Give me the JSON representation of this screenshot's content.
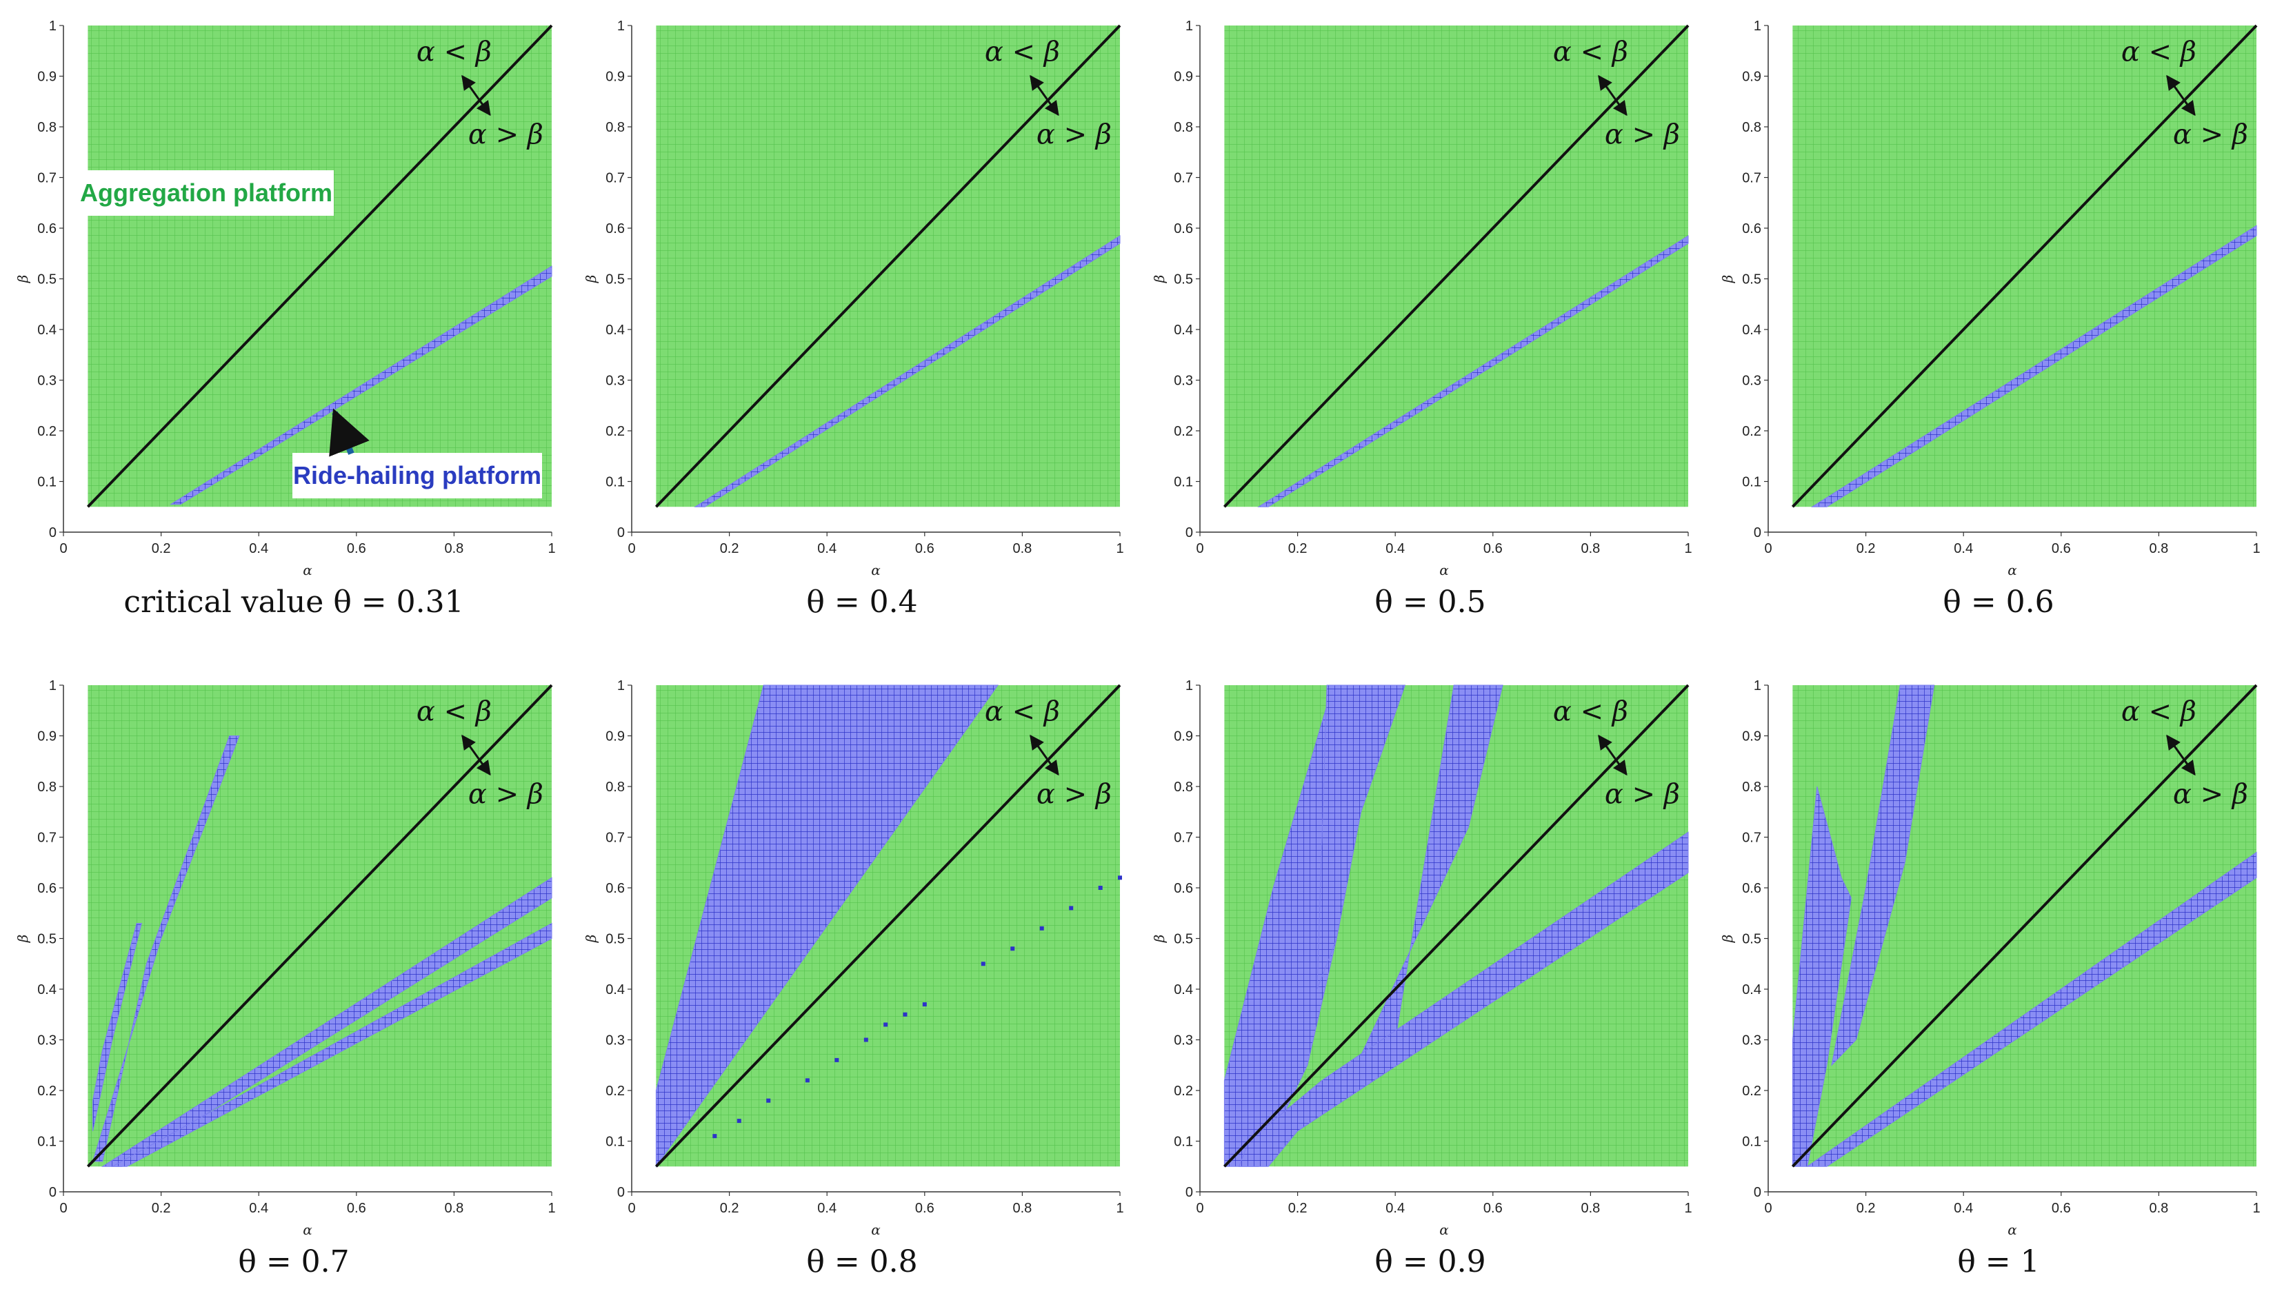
{
  "figure": {
    "colors": {
      "aggregation": "#7ddc72",
      "aggregation_grid": "#5cc853",
      "ride_hailing": "#7a7ef0",
      "ride_hailing_grid": "#2d33c8",
      "diagonal": "#111111",
      "callout_green": "#22a845",
      "callout_blue": "#2a3cc0"
    }
  },
  "chart_data": [
    {
      "type": "heatmap",
      "caption": "critical value   θ = 0.31",
      "xlabel": "α",
      "ylabel": "β",
      "xlim": [
        0,
        1
      ],
      "ylim": [
        0,
        1
      ],
      "xticks": [
        "0",
        "0.2",
        "0.4",
        "0.6",
        "0.8",
        "1"
      ],
      "yticks": [
        "0",
        "0.1",
        "0.2",
        "0.3",
        "0.4",
        "0.5",
        "0.6",
        "0.7",
        "0.8",
        "0.9",
        "1"
      ],
      "domain": [
        0.05,
        1
      ],
      "annotation_top": "α < β",
      "annotation_bottom": "α > β",
      "legend_aggregation": "Aggregation platform",
      "legend_ride_hailing": "Ride-hailing platform",
      "ride_hailing_regions": [
        [
          [
            0.22,
            0.055
          ],
          [
            1.0,
            0.525
          ],
          [
            1.0,
            0.505
          ],
          [
            0.24,
            0.055
          ]
        ]
      ]
    },
    {
      "type": "heatmap",
      "caption": "θ = 0.4",
      "xlabel": "α",
      "ylabel": "β",
      "xlim": [
        0,
        1
      ],
      "ylim": [
        0,
        1
      ],
      "xticks": [
        "0",
        "0.2",
        "0.4",
        "0.6",
        "0.8",
        "1"
      ],
      "yticks": [
        "0",
        "0.1",
        "0.2",
        "0.3",
        "0.4",
        "0.5",
        "0.6",
        "0.7",
        "0.8",
        "0.9",
        "1"
      ],
      "domain": [
        0.05,
        1
      ],
      "annotation_top": "α < β",
      "annotation_bottom": "α > β",
      "ride_hailing_regions": [
        [
          [
            0.13,
            0.05
          ],
          [
            1.0,
            0.585
          ],
          [
            1.0,
            0.57
          ],
          [
            0.15,
            0.05
          ]
        ]
      ]
    },
    {
      "type": "heatmap",
      "caption": "θ = 0.5",
      "xlabel": "α",
      "ylabel": "β",
      "xlim": [
        0,
        1
      ],
      "ylim": [
        0,
        1
      ],
      "xticks": [
        "0",
        "0.2",
        "0.4",
        "0.6",
        "0.8",
        "1"
      ],
      "yticks": [
        "0",
        "0.1",
        "0.2",
        "0.3",
        "0.4",
        "0.5",
        "0.6",
        "0.7",
        "0.8",
        "0.9",
        "1"
      ],
      "domain": [
        0.05,
        1
      ],
      "annotation_top": "α < β",
      "annotation_bottom": "α > β",
      "ride_hailing_regions": [
        [
          [
            0.12,
            0.05
          ],
          [
            1.0,
            0.585
          ],
          [
            1.0,
            0.57
          ],
          [
            0.14,
            0.05
          ]
        ]
      ]
    },
    {
      "type": "heatmap",
      "caption": "θ = 0.6",
      "xlabel": "α",
      "ylabel": "β",
      "xlim": [
        0,
        1
      ],
      "ylim": [
        0,
        1
      ],
      "xticks": [
        "0",
        "0.2",
        "0.4",
        "0.6",
        "0.8",
        "1"
      ],
      "yticks": [
        "0",
        "0.1",
        "0.2",
        "0.3",
        "0.4",
        "0.5",
        "0.6",
        "0.7",
        "0.8",
        "0.9",
        "1"
      ],
      "domain": [
        0.05,
        1
      ],
      "annotation_top": "α < β",
      "annotation_bottom": "α > β",
      "ride_hailing_regions": [
        [
          [
            0.09,
            0.05
          ],
          [
            1.0,
            0.605
          ],
          [
            1.0,
            0.585
          ],
          [
            0.12,
            0.05
          ]
        ]
      ]
    },
    {
      "type": "heatmap",
      "caption": "θ = 0.7",
      "xlabel": "α",
      "ylabel": "β",
      "xlim": [
        0,
        1
      ],
      "ylim": [
        0,
        1
      ],
      "xticks": [
        "0",
        "0.2",
        "0.4",
        "0.6",
        "0.8",
        "1"
      ],
      "yticks": [
        "0",
        "0.1",
        "0.2",
        "0.3",
        "0.4",
        "0.5",
        "0.6",
        "0.7",
        "0.8",
        "0.9",
        "1"
      ],
      "domain": [
        0.05,
        1
      ],
      "annotation_top": "α < β",
      "annotation_bottom": "α > β",
      "ride_hailing_regions": [
        [
          [
            0.06,
            0.06
          ],
          [
            0.2,
            0.5
          ],
          [
            0.36,
            0.9
          ],
          [
            0.34,
            0.9
          ],
          [
            0.17,
            0.45
          ],
          [
            0.08,
            0.06
          ]
        ],
        [
          [
            0.06,
            0.12
          ],
          [
            0.1,
            0.3
          ],
          [
            0.16,
            0.53
          ],
          [
            0.15,
            0.53
          ],
          [
            0.08,
            0.28
          ],
          [
            0.06,
            0.18
          ]
        ],
        [
          [
            0.08,
            0.05
          ],
          [
            1.0,
            0.62
          ],
          [
            1.0,
            0.58
          ],
          [
            0.12,
            0.05
          ]
        ],
        [
          [
            0.1,
            0.05
          ],
          [
            1.0,
            0.53
          ],
          [
            1.0,
            0.5
          ],
          [
            0.13,
            0.05
          ]
        ]
      ]
    },
    {
      "type": "heatmap",
      "caption": "θ = 0.8",
      "xlabel": "α",
      "ylabel": "β",
      "xlim": [
        0,
        1
      ],
      "ylim": [
        0,
        1
      ],
      "xticks": [
        "0",
        "0.2",
        "0.4",
        "0.6",
        "0.8",
        "1"
      ],
      "yticks": [
        "0",
        "0.1",
        "0.2",
        "0.3",
        "0.4",
        "0.5",
        "0.6",
        "0.7",
        "0.8",
        "0.9",
        "1"
      ],
      "domain": [
        0.05,
        1
      ],
      "annotation_top": "α < β",
      "annotation_bottom": "α > β",
      "ride_hailing_regions": [
        [
          [
            0.05,
            0.05
          ],
          [
            0.05,
            0.2
          ],
          [
            0.27,
            1.0
          ],
          [
            0.75,
            1.0
          ],
          [
            0.05,
            0.05
          ]
        ]
      ],
      "ride_hailing_points": [
        [
          0.17,
          0.11
        ],
        [
          0.22,
          0.14
        ],
        [
          0.28,
          0.18
        ],
        [
          0.36,
          0.22
        ],
        [
          0.42,
          0.26
        ],
        [
          0.48,
          0.3
        ],
        [
          0.52,
          0.33
        ],
        [
          0.56,
          0.35
        ],
        [
          0.6,
          0.37
        ],
        [
          0.72,
          0.45
        ],
        [
          0.78,
          0.48
        ],
        [
          0.84,
          0.52
        ],
        [
          0.9,
          0.56
        ],
        [
          0.96,
          0.6
        ],
        [
          1.0,
          0.62
        ]
      ]
    },
    {
      "type": "heatmap",
      "caption": "θ = 0.9",
      "xlabel": "α",
      "ylabel": "β",
      "xlim": [
        0,
        1
      ],
      "ylim": [
        0,
        1
      ],
      "xticks": [
        "0",
        "0.2",
        "0.4",
        "0.6",
        "0.8",
        "1"
      ],
      "yticks": [
        "0",
        "0.1",
        "0.2",
        "0.3",
        "0.4",
        "0.5",
        "0.6",
        "0.7",
        "0.8",
        "0.9",
        "1"
      ],
      "domain": [
        0.05,
        1
      ],
      "annotation_top": "α < β",
      "annotation_bottom": "α > β",
      "ride_hailing_regions": [
        [
          [
            0.05,
            0.05
          ],
          [
            0.05,
            0.22
          ],
          [
            0.15,
            0.6
          ],
          [
            0.26,
            0.96
          ],
          [
            0.28,
            0.5
          ],
          [
            0.22,
            0.25
          ],
          [
            0.12,
            0.05
          ]
        ],
        [
          [
            0.24,
            0.4
          ],
          [
            0.26,
            1.0
          ],
          [
            0.42,
            1.0
          ],
          [
            0.33,
            0.75
          ],
          [
            0.28,
            0.5
          ]
        ],
        [
          [
            0.4,
            0.3
          ],
          [
            0.52,
            1.0
          ],
          [
            0.62,
            1.0
          ],
          [
            0.55,
            0.72
          ],
          [
            0.32,
            0.25
          ]
        ],
        [
          [
            0.08,
            0.05
          ],
          [
            0.1,
            0.1
          ],
          [
            0.25,
            0.22
          ],
          [
            1.0,
            0.71
          ],
          [
            1.0,
            0.63
          ],
          [
            0.2,
            0.12
          ],
          [
            0.14,
            0.05
          ]
        ]
      ]
    },
    {
      "type": "heatmap",
      "caption": "θ = 1",
      "xlabel": "α",
      "ylabel": "β",
      "xlim": [
        0,
        1
      ],
      "ylim": [
        0,
        1
      ],
      "xticks": [
        "0",
        "0.2",
        "0.4",
        "0.6",
        "0.8",
        "1"
      ],
      "yticks": [
        "0",
        "0.1",
        "0.2",
        "0.3",
        "0.4",
        "0.5",
        "0.6",
        "0.7",
        "0.8",
        "0.9",
        "1"
      ],
      "domain": [
        0.05,
        1
      ],
      "annotation_top": "α < β",
      "annotation_bottom": "α > β",
      "ride_hailing_regions": [
        [
          [
            0.05,
            0.05
          ],
          [
            0.05,
            0.3
          ],
          [
            0.07,
            0.5
          ],
          [
            0.1,
            0.8
          ],
          [
            0.15,
            0.62
          ],
          [
            0.17,
            0.58
          ],
          [
            0.12,
            0.25
          ],
          [
            0.08,
            0.05
          ]
        ],
        [
          [
            0.13,
            0.25
          ],
          [
            0.2,
            0.6
          ],
          [
            0.27,
            1.0
          ],
          [
            0.34,
            1.0
          ],
          [
            0.28,
            0.65
          ],
          [
            0.18,
            0.3
          ]
        ],
        [
          [
            0.08,
            0.05
          ],
          [
            1.0,
            0.67
          ],
          [
            1.0,
            0.62
          ],
          [
            0.12,
            0.05
          ]
        ]
      ]
    }
  ]
}
